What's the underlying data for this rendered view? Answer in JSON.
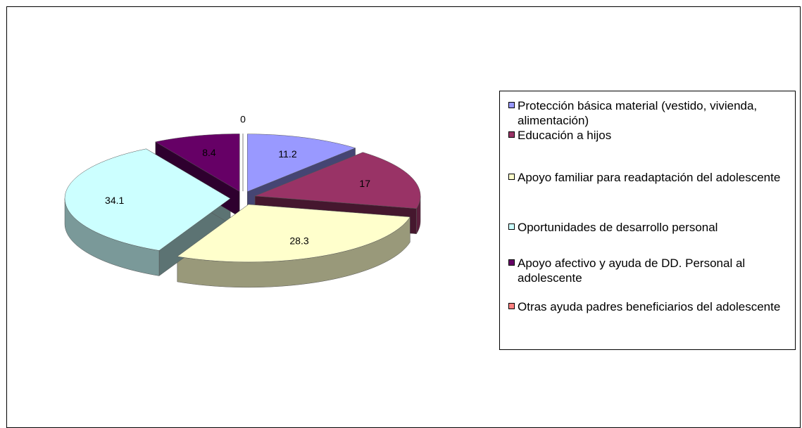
{
  "chart_data": {
    "type": "pie",
    "categories": [
      "Protección básica material (vestido, vivienda, alimentación)",
      "Educación a hijos",
      "Apoyo familiar para readaptación del adolescente",
      "Oportunidades de desarrollo personal",
      "Apoyo afectivo y ayuda de DD. Personal al adolescente",
      "Otras ayuda padres beneficiarios del adolescente"
    ],
    "values": [
      11.2,
      17,
      28.3,
      34.1,
      8.4,
      0
    ],
    "colors": [
      "#9999ff",
      "#993366",
      "#ffffcc",
      "#ccffff",
      "#660066",
      "#ff8080"
    ],
    "legend": "right"
  }
}
